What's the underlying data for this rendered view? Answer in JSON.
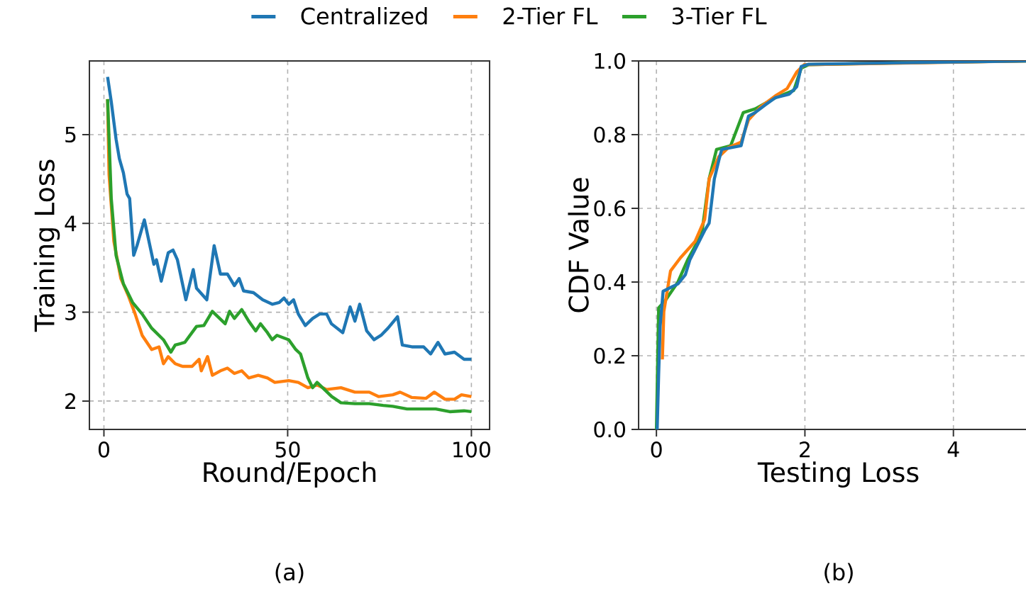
{
  "chart_data": [
    {
      "type": "line",
      "xlabel": "Round/Epoch",
      "ylabel": "Training Loss",
      "annotations": [
        "(a)"
      ],
      "xlim": [
        -3.95,
        104.95
      ],
      "ylim": [
        1.68,
        5.83
      ],
      "xticks": [
        0,
        50,
        100
      ],
      "yticks": [
        2,
        3,
        4,
        5
      ],
      "grid": true,
      "legend": "top",
      "series": [
        {
          "name": "Centralized",
          "color": "#1f77b4",
          "x": [
            1,
            2,
            3.3,
            4.2,
            5.3,
            6.3,
            7,
            8.1,
            9,
            11,
            13.6,
            14.3,
            15.6,
            17.5,
            18.8,
            20,
            22.3,
            24.3,
            25.2,
            28,
            30,
            31.7,
            33.6,
            35.5,
            36.8,
            38,
            40.7,
            43.2,
            45.8,
            47.7,
            49,
            50.3,
            51.6,
            52.9,
            54.8,
            56.8,
            58.7,
            60.6,
            61.9,
            65,
            67,
            68.3,
            69.6,
            71.5,
            73.5,
            75.4,
            77.3,
            79.9,
            81.2,
            83.8,
            87,
            88.9,
            90.9,
            92.8,
            95.4,
            98,
            100
          ],
          "values": [
            5.65,
            5.37,
            4.95,
            4.73,
            4.57,
            4.33,
            4.28,
            3.64,
            3.75,
            4.04,
            3.54,
            3.59,
            3.35,
            3.67,
            3.7,
            3.59,
            3.14,
            3.48,
            3.27,
            3.14,
            3.75,
            3.43,
            3.43,
            3.3,
            3.38,
            3.24,
            3.22,
            3.14,
            3.09,
            3.11,
            3.16,
            3.09,
            3.14,
            2.98,
            2.85,
            2.93,
            2.98,
            2.98,
            2.87,
            2.77,
            3.06,
            2.9,
            3.09,
            2.79,
            2.69,
            2.74,
            2.82,
            2.95,
            2.63,
            2.61,
            2.61,
            2.53,
            2.66,
            2.53,
            2.55,
            2.47,
            2.47
          ]
        },
        {
          "name": "2-Tier FL",
          "color": "#ff7f0e",
          "x": [
            1,
            1.4,
            2.7,
            4.6,
            6.6,
            8.5,
            10.4,
            13,
            15,
            16.2,
            17.5,
            19.4,
            21.4,
            24,
            25.9,
            26.5,
            28.2,
            29.5,
            31.7,
            33.6,
            35.5,
            37.5,
            39.4,
            42,
            44.5,
            46.5,
            50.3,
            52.9,
            55.5,
            58,
            60.6,
            64.5,
            68.3,
            72.2,
            74.8,
            78.6,
            80.6,
            83.8,
            87.6,
            89.9,
            92.8,
            95.4,
            97.3,
            100
          ],
          "values": [
            5.4,
            4.55,
            3.8,
            3.38,
            3.19,
            2.98,
            2.74,
            2.58,
            2.61,
            2.42,
            2.5,
            2.42,
            2.39,
            2.39,
            2.47,
            2.34,
            2.5,
            2.29,
            2.34,
            2.37,
            2.31,
            2.34,
            2.26,
            2.29,
            2.26,
            2.21,
            2.23,
            2.21,
            2.15,
            2.18,
            2.13,
            2.15,
            2.1,
            2.1,
            2.05,
            2.07,
            2.1,
            2.04,
            2.03,
            2.1,
            2.02,
            2.02,
            2.07,
            2.05
          ]
        },
        {
          "name": "3-Tier FL",
          "color": "#2ca02c",
          "x": [
            1,
            2,
            3.3,
            5.3,
            7.8,
            10.4,
            13,
            16.2,
            18.2,
            19.4,
            22,
            25.2,
            27.2,
            29.5,
            31,
            33,
            34.2,
            35.5,
            37.5,
            39.4,
            41.3,
            42.6,
            44.5,
            45.8,
            47.1,
            49,
            50.3,
            52.2,
            53.5,
            55.5,
            56.8,
            58,
            60,
            62,
            64.5,
            68.3,
            72.2,
            76,
            78.6,
            82.5,
            86.4,
            90.3,
            94.1,
            98,
            100
          ],
          "values": [
            5.4,
            4.28,
            3.64,
            3.32,
            3.11,
            2.98,
            2.82,
            2.69,
            2.55,
            2.63,
            2.66,
            2.84,
            2.85,
            3.01,
            2.95,
            2.87,
            3.01,
            2.93,
            3.03,
            2.9,
            2.79,
            2.87,
            2.77,
            2.69,
            2.74,
            2.71,
            2.69,
            2.58,
            2.53,
            2.26,
            2.15,
            2.21,
            2.13,
            2.05,
            1.98,
            1.97,
            1.97,
            1.95,
            1.94,
            1.91,
            1.91,
            1.91,
            1.88,
            1.89,
            1.88
          ]
        }
      ]
    },
    {
      "type": "line",
      "xlabel": "Testing Loss",
      "ylabel": "CDF Value",
      "annotations": [
        "(b)"
      ],
      "xlim": [
        -0.24,
        5.15
      ],
      "ylim": [
        0,
        1
      ],
      "xticks": [
        0,
        2,
        4
      ],
      "yticks": [
        {
          "value": 0,
          "label": "0.0"
        },
        {
          "value": 0.2,
          "label": "0.2"
        },
        {
          "value": 0.4,
          "label": "0.4"
        },
        {
          "value": 0.6,
          "label": "0.6"
        },
        {
          "value": 0.8,
          "label": "0.8"
        },
        {
          "value": 1,
          "label": "1.0"
        }
      ],
      "grid": true,
      "series": [
        {
          "color": "#2ca02c",
          "x": [
            0,
            0.03,
            0.12,
            0.29,
            0.42,
            0.61,
            0.71,
            0.81,
            1.0,
            1.17,
            1.33,
            1.6,
            1.85,
            1.95,
            2.05,
            3.29,
            5.06
          ],
          "values": [
            0,
            0.33,
            0.35,
            0.4,
            0.46,
            0.53,
            0.68,
            0.76,
            0.77,
            0.86,
            0.87,
            0.9,
            0.92,
            0.98,
            0.99,
            0.995,
            1.0
          ]
        },
        {
          "color": "#ff7f0e",
          "x": [
            0.08,
            0.1,
            0.19,
            0.32,
            0.52,
            0.65,
            0.71,
            0.84,
            0.97,
            1.14,
            1.24,
            1.4,
            1.6,
            1.76,
            1.89,
            1.99,
            5.06
          ],
          "values": [
            0.19,
            0.32,
            0.43,
            0.465,
            0.51,
            0.57,
            0.68,
            0.74,
            0.765,
            0.78,
            0.84,
            0.875,
            0.905,
            0.925,
            0.97,
            0.99,
            1.0
          ]
        },
        {
          "color": "#1f77b4",
          "x": [
            0.01,
            0.03,
            0.05,
            0.09,
            0.19,
            0.29,
            0.39,
            0.45,
            0.55,
            0.65,
            0.71,
            0.78,
            0.84,
            0.88,
            1.01,
            1.14,
            1.24,
            1.33,
            1.46,
            1.6,
            1.79,
            1.89,
            1.95,
            2.05,
            3.29,
            5.06
          ],
          "values": [
            0,
            0.15,
            0.28,
            0.375,
            0.385,
            0.395,
            0.42,
            0.46,
            0.5,
            0.54,
            0.56,
            0.68,
            0.73,
            0.76,
            0.765,
            0.77,
            0.85,
            0.86,
            0.88,
            0.9,
            0.91,
            0.93,
            0.985,
            0.991,
            0.995,
            1.0
          ]
        }
      ]
    }
  ]
}
